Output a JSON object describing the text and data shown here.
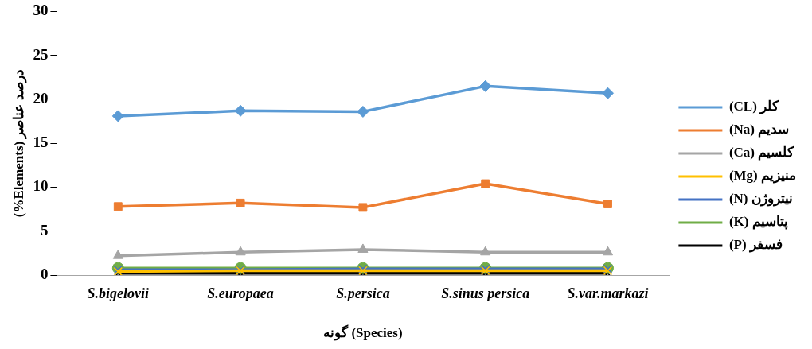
{
  "chart_data": {
    "type": "line",
    "xlabel": "گونه (Species)",
    "ylabel": "(%Elements) درصد عناصر",
    "categories": [
      "S.bigelovii",
      "S.europaea",
      "S.persica",
      "S.sinus persica",
      "S.var.markazi"
    ],
    "ylim": [
      0,
      30
    ],
    "yticks": [
      0,
      5,
      10,
      15,
      20,
      25,
      30
    ],
    "grid": false,
    "legend": "right",
    "line_style": "solid",
    "series": [
      {
        "name": "(CL) کلر",
        "color": "#5b9bd5",
        "marker": "diamond",
        "values": [
          18.1,
          18.7,
          18.6,
          21.5,
          20.7
        ]
      },
      {
        "name": "(Na) سدیم",
        "color": "#ed7d31",
        "marker": "square",
        "values": [
          7.8,
          8.2,
          7.7,
          10.4,
          8.1
        ]
      },
      {
        "name": "(Ca) کلسیم",
        "color": "#a5a5a5",
        "marker": "triangle",
        "values": [
          2.2,
          2.6,
          2.9,
          2.6,
          2.6
        ]
      },
      {
        "name": "(Mg) منیزیم",
        "color": "#ffc000",
        "marker": "cross",
        "values": [
          0.4,
          0.5,
          0.5,
          0.5,
          0.5
        ]
      },
      {
        "name": "(N) نیتروژن",
        "color": "#4472c4",
        "marker": "cross",
        "values": [
          0.6,
          0.6,
          0.7,
          0.7,
          0.7
        ]
      },
      {
        "name": "(K) پتاسیم",
        "color": "#70ad47",
        "marker": "circle",
        "values": [
          0.8,
          0.8,
          0.8,
          0.8,
          0.8
        ]
      },
      {
        "name": "(P) فسفر",
        "color": "#000000",
        "marker": "cross",
        "values": [
          0.2,
          0.2,
          0.2,
          0.2,
          0.2
        ]
      }
    ]
  }
}
